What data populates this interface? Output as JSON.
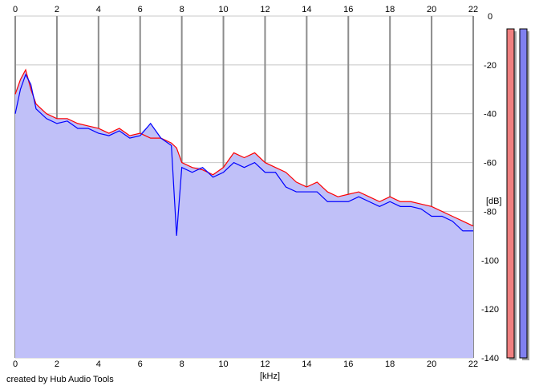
{
  "credit": "created by Hub Audio Tools",
  "chart_data": {
    "type": "line",
    "title": "",
    "xlabel": "[kHz]",
    "ylabel": "[dB]",
    "xlim": [
      0,
      22
    ],
    "ylim": [
      -140,
      0
    ],
    "x_ticks": [
      0,
      2,
      4,
      6,
      8,
      10,
      12,
      14,
      16,
      18,
      20,
      22
    ],
    "y_ticks": [
      0,
      -20,
      -40,
      -60,
      -80,
      -100,
      -120,
      -140
    ],
    "x_tick_labels": [
      "0",
      "2",
      "4",
      "6",
      "8",
      "10",
      "12",
      "14",
      "16",
      "18",
      "20",
      "22"
    ],
    "y_tick_labels": [
      "0",
      "-20",
      "-40",
      "-60",
      "-80",
      "-100",
      "-120",
      "-140"
    ],
    "grid": true,
    "fill_color": "#c0c0f8",
    "series": [
      {
        "color": "#ff0000",
        "x": [
          0,
          0.25,
          0.5,
          0.75,
          1,
          1.5,
          2,
          2.5,
          3,
          3.5,
          4,
          4.5,
          5,
          5.5,
          6,
          6.5,
          7,
          7.5,
          7.75,
          8,
          8.5,
          9,
          9.5,
          10,
          10.5,
          11,
          11.5,
          12,
          12.5,
          13,
          13.5,
          14,
          14.5,
          15,
          15.5,
          16,
          16.5,
          17,
          17.5,
          18,
          18.5,
          19,
          19.5,
          20,
          20.5,
          21,
          21.5,
          22
        ],
        "values": [
          -32,
          -26,
          -22,
          -30,
          -36,
          -40,
          -42,
          -42,
          -44,
          -45,
          -46,
          -48,
          -46,
          -49,
          -48,
          -50,
          -50,
          -52,
          -54,
          -60,
          -62,
          -63,
          -65,
          -62,
          -56,
          -58,
          -56,
          -60,
          -62,
          -64,
          -68,
          -70,
          -68,
          -72,
          -74,
          -73,
          -72,
          -74,
          -76,
          -74,
          -76,
          -76,
          -77,
          -78,
          -80,
          -82,
          -84,
          -86
        ]
      },
      {
        "color": "#0000ff",
        "x": [
          0,
          0.25,
          0.5,
          0.75,
          1,
          1.5,
          2,
          2.5,
          3,
          3.5,
          4,
          4.5,
          5,
          5.5,
          6,
          6.5,
          7,
          7.5,
          7.75,
          8,
          8.5,
          9,
          9.5,
          10,
          10.5,
          11,
          11.5,
          12,
          12.5,
          13,
          13.5,
          14,
          14.5,
          15,
          15.5,
          16,
          16.5,
          17,
          17.5,
          18,
          18.5,
          19,
          19.5,
          20,
          20.5,
          21,
          21.5,
          22
        ],
        "values": [
          -40,
          -30,
          -24,
          -28,
          -38,
          -42,
          -44,
          -43,
          -46,
          -46,
          -48,
          -49,
          -47,
          -50,
          -49,
          -44,
          -50,
          -53,
          -90,
          -62,
          -64,
          -62,
          -66,
          -64,
          -60,
          -62,
          -60,
          -64,
          -64,
          -70,
          -72,
          -72,
          -72,
          -76,
          -76,
          -76,
          -74,
          -76,
          -78,
          -76,
          -78,
          -78,
          -79,
          -82,
          -82,
          -84,
          -88,
          -88
        ]
      }
    ],
    "meters": [
      {
        "color": "#f08080",
        "value": 0
      },
      {
        "color": "#8080f0",
        "value": 0
      }
    ]
  }
}
